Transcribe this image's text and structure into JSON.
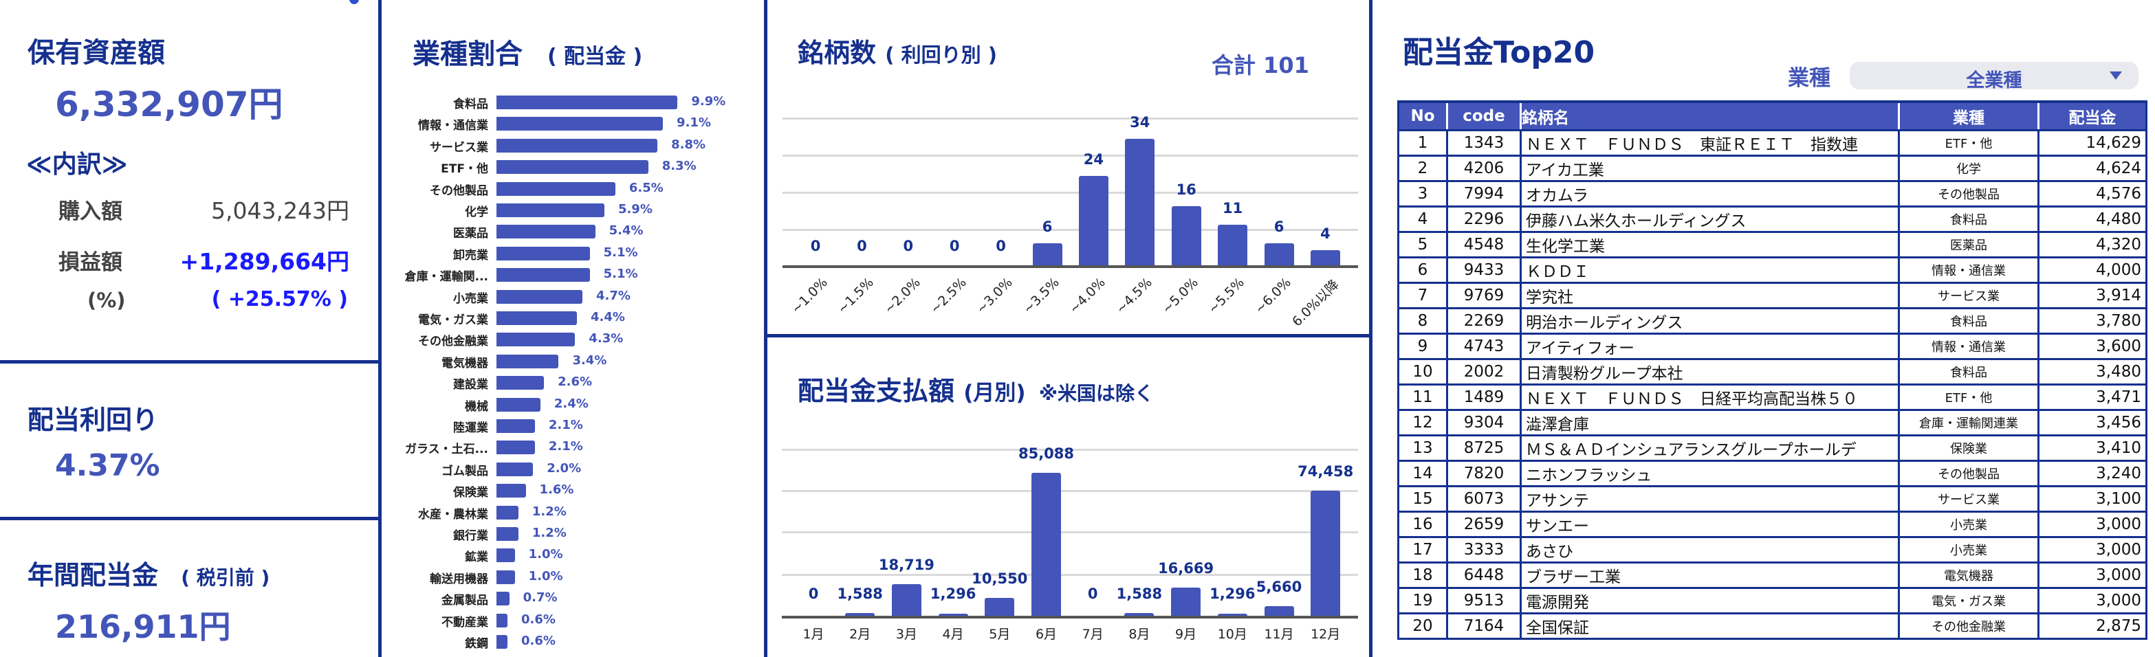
{
  "summary": {
    "assets_title": "保有資産額",
    "assets_value": "6,332,907円",
    "breakdown_title": "≪内訳≫",
    "purchase_label": "購入額",
    "purchase_value": "5,043,243円",
    "pl_label": "損益額",
    "pl_value": "+1,289,664円",
    "pl_pct_label": "(%)",
    "pl_pct_value": "( +25.57% )",
    "yield_title": "配当利回り",
    "yield_value": "4.37%",
    "annual_title": "年間配当金",
    "annual_sub": "( 税引前 )",
    "annual_value": "216,911円"
  },
  "colors": {
    "navy": "#15308e",
    "accent": "#4355b8",
    "positive": "#1a1aff",
    "grid": "#d9d9d9"
  },
  "industry": {
    "title": "業種割合",
    "subtitle": "( 配当金 )"
  },
  "yield_dist": {
    "title": "銘柄数",
    "subtitle": "( 利回り別 )",
    "total": "合計 101"
  },
  "monthly": {
    "title": "配当金支払額",
    "subtitle": "(月別)",
    "note": "※米国は除く"
  },
  "chart_data": [
    {
      "type": "bar",
      "orientation": "horizontal",
      "title": "業種割合 ( 配当金 )",
      "categories": [
        "食料品",
        "情報・通信業",
        "サービス業",
        "ETF・他",
        "その他製品",
        "化学",
        "医薬品",
        "卸売業",
        "倉庫・運輸関...",
        "小売業",
        "電気・ガス業",
        "その他金融業",
        "電気機器",
        "建設業",
        "機械",
        "陸運業",
        "ガラス・土石...",
        "ゴム製品",
        "保険業",
        "水産・農林業",
        "銀行業",
        "鉱業",
        "輸送用機器",
        "金属製品",
        "不動産業",
        "鉄鋼"
      ],
      "values": [
        9.9,
        9.1,
        8.8,
        8.3,
        6.5,
        5.9,
        5.4,
        5.1,
        5.1,
        4.7,
        4.4,
        4.3,
        3.4,
        2.6,
        2.4,
        2.1,
        2.1,
        2.0,
        1.6,
        1.2,
        1.2,
        1.0,
        1.0,
        0.7,
        0.6,
        0.6
      ],
      "labels": [
        "9.9%",
        "9.1%",
        "8.8%",
        "8.3%",
        "6.5%",
        "5.9%",
        "5.4%",
        "5.1%",
        "5.1%",
        "4.7%",
        "4.4%",
        "4.3%",
        "3.4%",
        "2.6%",
        "2.4%",
        "2.1%",
        "2.1%",
        "2.0%",
        "1.6%",
        "1.2%",
        "1.2%",
        "1.0%",
        "1.0%",
        "0.7%",
        "0.6%",
        "0.6%"
      ],
      "xlabel": "",
      "ylabel": "",
      "grid": false
    },
    {
      "type": "bar",
      "title": "銘柄数 ( 利回り別 )",
      "categories": [
        "~1.0%",
        "~1.5%",
        "~2.0%",
        "~2.5%",
        "~3.0%",
        "~3.5%",
        "~4.0%",
        "~4.5%",
        "~5.0%",
        "~5.5%",
        "~6.0%",
        "6.0%以降"
      ],
      "values": [
        0,
        0,
        0,
        0,
        0,
        6,
        24,
        34,
        16,
        11,
        6,
        4
      ],
      "annotation": "合計 101",
      "ylim": [
        0,
        40
      ],
      "grid": true
    },
    {
      "type": "bar",
      "title": "配当金支払額 (月別) ※米国は除く",
      "categories": [
        "1月",
        "2月",
        "3月",
        "4月",
        "5月",
        "6月",
        "7月",
        "8月",
        "9月",
        "10月",
        "11月",
        "12月"
      ],
      "values": [
        0,
        1588,
        18719,
        1296,
        10550,
        85088,
        0,
        1588,
        16669,
        1296,
        5660,
        74458
      ],
      "labels": [
        "0",
        "1,588",
        "18,719",
        "1,296",
        "10,550",
        "85,088",
        "0",
        "1,588",
        "16,669",
        "1,296",
        "5,660",
        "74,458"
      ],
      "ylim": [
        0,
        100000
      ],
      "grid": true
    }
  ],
  "top20": {
    "title": "配当金Top20",
    "filter_label": "業種",
    "filter_value": "全業種",
    "columns": [
      "No",
      "code",
      "銘柄名",
      "業種",
      "配当金"
    ],
    "rows": [
      [
        "1",
        "1343",
        "ＮＥＸＴ　ＦＵＮＤＳ　東証ＲＥＩＴ　指数連",
        "ETF・他",
        "14,629"
      ],
      [
        "2",
        "4206",
        "アイカ工業",
        "化学",
        "4,624"
      ],
      [
        "3",
        "7994",
        "オカムラ",
        "その他製品",
        "4,576"
      ],
      [
        "4",
        "2296",
        "伊藤ハム米久ホールディングス",
        "食料品",
        "4,480"
      ],
      [
        "5",
        "4548",
        "生化学工業",
        "医薬品",
        "4,320"
      ],
      [
        "6",
        "9433",
        "ＫＤＤＩ",
        "情報・通信業",
        "4,000"
      ],
      [
        "7",
        "9769",
        "学究社",
        "サービス業",
        "3,914"
      ],
      [
        "8",
        "2269",
        "明治ホールディングス",
        "食料品",
        "3,780"
      ],
      [
        "9",
        "4743",
        "アイティフォー",
        "情報・通信業",
        "3,600"
      ],
      [
        "10",
        "2002",
        "日清製粉グループ本社",
        "食料品",
        "3,480"
      ],
      [
        "11",
        "1489",
        "ＮＥＸＴ　ＦＵＮＤＳ　日経平均高配当株５０",
        "ETF・他",
        "3,471"
      ],
      [
        "12",
        "9304",
        "澁澤倉庫",
        "倉庫・運輸関連業",
        "3,456"
      ],
      [
        "13",
        "8725",
        "ＭＳ＆ＡＤインシュアランスグループホールデ",
        "保険業",
        "3,410"
      ],
      [
        "14",
        "7820",
        "ニホンフラッシュ",
        "その他製品",
        "3,240"
      ],
      [
        "15",
        "6073",
        "アサンテ",
        "サービス業",
        "3,100"
      ],
      [
        "16",
        "2659",
        "サンエー",
        "小売業",
        "3,000"
      ],
      [
        "17",
        "3333",
        "あさひ",
        "小売業",
        "3,000"
      ],
      [
        "18",
        "6448",
        "ブラザー工業",
        "電気機器",
        "3,000"
      ],
      [
        "19",
        "9513",
        "電源開発",
        "電気・ガス業",
        "3,000"
      ],
      [
        "20",
        "7164",
        "全国保証",
        "その他金融業",
        "2,875"
      ]
    ]
  }
}
